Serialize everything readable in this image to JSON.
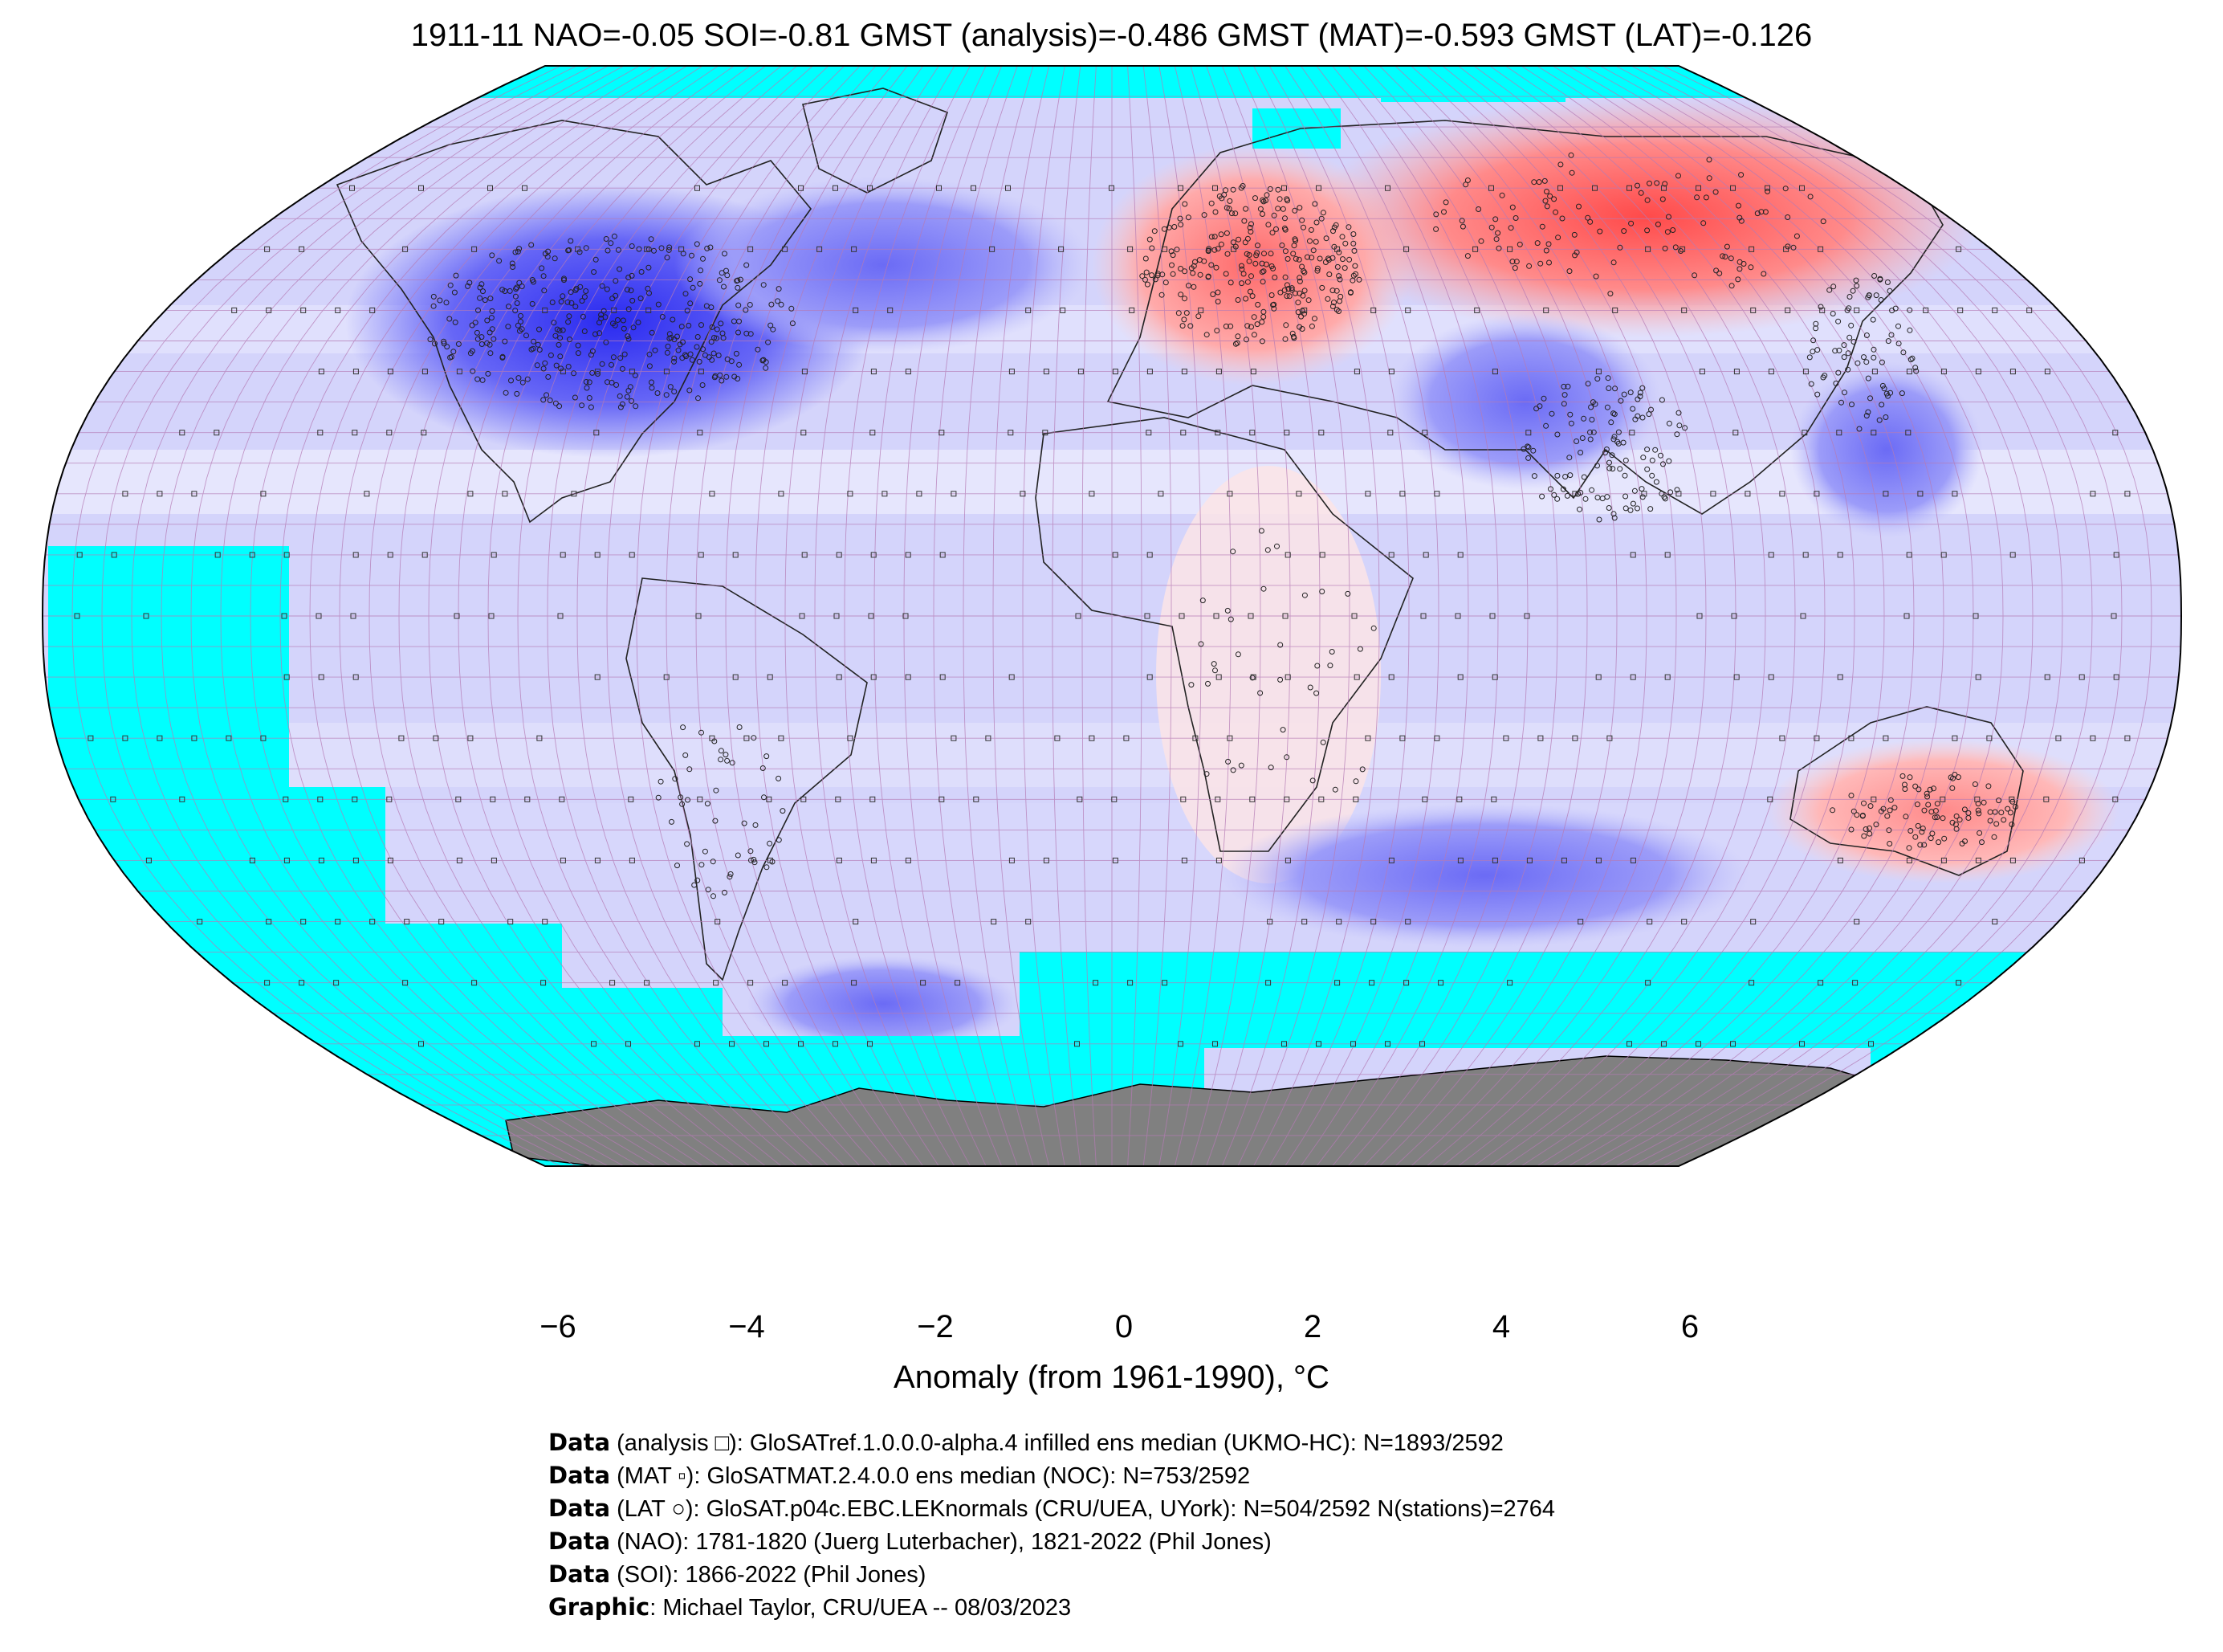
{
  "title": "1911-11 NAO=-0.05 SOI=-0.81 GMST (analysis)=-0.486 GMST (MAT)=-0.593 GMST (LAT)=-0.126",
  "map": {
    "projection": "Robinson",
    "no_data_color": "#00ffff",
    "antarctica_color": "#808080",
    "grid_line_color": "#b57bb5",
    "anomaly_regions": [
      {
        "name": "north-america-cold",
        "anomaly": -4.0
      },
      {
        "name": "north-atlantic-cold",
        "anomaly": -2.5
      },
      {
        "name": "europe-warm",
        "anomaly": 2.5
      },
      {
        "name": "siberia-warm",
        "anomaly": 3.5
      },
      {
        "name": "central-asia-cold",
        "anomaly": -2.5
      },
      {
        "name": "australia-warm",
        "anomaly": 2.0
      },
      {
        "name": "southern-ocean-cold",
        "anomaly": -2.5
      },
      {
        "name": "africa-warm",
        "anomaly": 0.8
      }
    ]
  },
  "colorbar": {
    "min": -6,
    "max": 6,
    "colors": [
      "#0000ff",
      "#ffffff",
      "#ff0000"
    ],
    "tick_labels": [
      "−6",
      "−4",
      "−2",
      "0",
      "2",
      "4",
      "6"
    ],
    "tick_values": [
      -6,
      -4,
      -2,
      0,
      2,
      4,
      6
    ],
    "label": "Anomaly (from 1961-1990), °C"
  },
  "credits": [
    {
      "bold": "Data",
      "text": " (analysis □): GloSATref.1.0.0.0-alpha.4 infilled ens median (UKMO-HC): N=1893/2592"
    },
    {
      "bold": "Data",
      "text": " (MAT ▫): GloSATMAT.2.4.0.0 ens median (NOC): N=753/2592"
    },
    {
      "bold": "Data",
      "text": " (LAT ○): GloSAT.p04c.EBC.LEKnormals (CRU/UEA, UYork): N=504/2592 N(stations)=2764"
    },
    {
      "bold": "Data",
      "text": " (NAO): 1781-1820 (Juerg Luterbacher), 1821-2022 (Phil Jones)"
    },
    {
      "bold": "Data",
      "text": " (SOI): 1866-2022 (Phil Jones)"
    },
    {
      "bold": "Graphic",
      "text": ": Michael Taylor, CRU/UEA -- 08/03/2023"
    }
  ]
}
